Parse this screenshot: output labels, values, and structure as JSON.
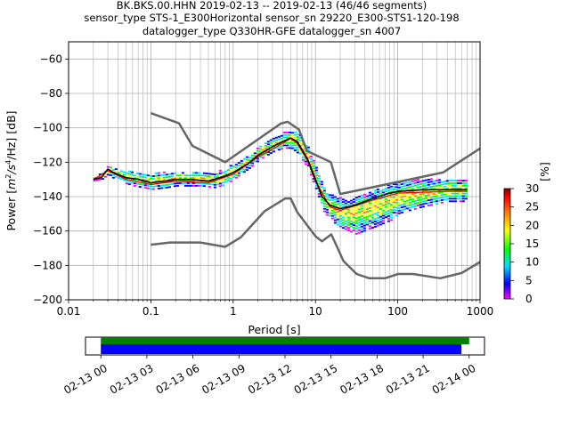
{
  "header": {
    "line1": "BK.BKS.00.HHN   2019-02-13 -- 2019-02-13  (46/46 segments)",
    "line2": "sensor_type STS-1_E300Horizontal sensor_sn 29220_E300-STS1-120-198",
    "line3": "datalogger_type Q330HR-GFE datalogger_sn 4007"
  },
  "chart_data": [
    {
      "type": "heatmap",
      "title": "BK.BKS.00.HHN   2019-02-13 -- 2019-02-13  (46/46 segments)",
      "xlabel": "Period [s]",
      "ylabel_prefix": "Power [",
      "ylabel_unit": "m",
      "ylabel_sup1": "2",
      "ylabel_mid": "/s",
      "ylabel_sup2": "4",
      "ylabel_suffix": "/Hz] [dB]",
      "x_scale": "log",
      "xlim": [
        0.01,
        1000
      ],
      "ylim": [
        -200,
        -50
      ],
      "x_ticks": [
        {
          "value": 0.01,
          "label": "0.01"
        },
        {
          "value": 0.1,
          "label": "0.1"
        },
        {
          "value": 1,
          "label": "1"
        },
        {
          "value": 10,
          "label": "10"
        },
        {
          "value": 100,
          "label": "100"
        },
        {
          "value": 1000,
          "label": "1000"
        }
      ],
      "y_ticks": [
        {
          "value": -60,
          "label": "−60"
        },
        {
          "value": -80,
          "label": "−80"
        },
        {
          "value": -100,
          "label": "−100"
        },
        {
          "value": -120,
          "label": "−120"
        },
        {
          "value": -140,
          "label": "−140"
        },
        {
          "value": -160,
          "label": "−160"
        },
        {
          "value": -180,
          "label": "−180"
        },
        {
          "value": -200,
          "label": "−200"
        }
      ],
      "grid": true,
      "colorbar": {
        "label": "[%]",
        "range": [
          0,
          30
        ],
        "ticks": [
          {
            "value": 0,
            "label": "0"
          },
          {
            "value": 5,
            "label": "5"
          },
          {
            "value": 10,
            "label": "10"
          },
          {
            "value": 15,
            "label": "15"
          },
          {
            "value": 20,
            "label": "20"
          },
          {
            "value": 25,
            "label": "25"
          },
          {
            "value": 30,
            "label": "30"
          }
        ],
        "colormap": [
          "#ff00ff",
          "#0000ff",
          "#00e0ff",
          "#00ff00",
          "#ffff00",
          "#ff8000",
          "#ff0000",
          "#800000"
        ]
      },
      "psd_band": [
        {
          "x": 0.02,
          "lo": -131,
          "hi": -129
        },
        {
          "x": 0.025,
          "lo": -130,
          "hi": -126
        },
        {
          "x": 0.03,
          "lo": -127,
          "hi": -122
        },
        {
          "x": 0.035,
          "lo": -130,
          "hi": -124
        },
        {
          "x": 0.045,
          "lo": -132,
          "hi": -125
        },
        {
          "x": 0.06,
          "lo": -134,
          "hi": -126
        },
        {
          "x": 0.08,
          "lo": -135,
          "hi": -126
        },
        {
          "x": 0.1,
          "lo": -136,
          "hi": -127
        },
        {
          "x": 0.15,
          "lo": -135,
          "hi": -126
        },
        {
          "x": 0.2,
          "lo": -134,
          "hi": -126
        },
        {
          "x": 0.3,
          "lo": -134,
          "hi": -126
        },
        {
          "x": 0.4,
          "lo": -134,
          "hi": -126
        },
        {
          "x": 0.6,
          "lo": -135,
          "hi": -126
        },
        {
          "x": 0.8,
          "lo": -133,
          "hi": -124
        },
        {
          "x": 1.0,
          "lo": -130,
          "hi": -121
        },
        {
          "x": 1.5,
          "lo": -124,
          "hi": -116
        },
        {
          "x": 2.0,
          "lo": -119,
          "hi": -111
        },
        {
          "x": 3.0,
          "lo": -114,
          "hi": -106
        },
        {
          "x": 4.0,
          "lo": -112,
          "hi": -103
        },
        {
          "x": 5.0,
          "lo": -112,
          "hi": -101
        },
        {
          "x": 6.0,
          "lo": -115,
          "hi": -103
        },
        {
          "x": 8.0,
          "lo": -124,
          "hi": -112
        },
        {
          "x": 10.0,
          "lo": -136,
          "hi": -124
        },
        {
          "x": 12.0,
          "lo": -148,
          "hi": -134
        },
        {
          "x": 15.0,
          "lo": -154,
          "hi": -139
        },
        {
          "x": 20.0,
          "lo": -158,
          "hi": -141
        },
        {
          "x": 30.0,
          "lo": -162,
          "hi": -140
        },
        {
          "x": 50.0,
          "lo": -158,
          "hi": -136
        },
        {
          "x": 80.0,
          "lo": -154,
          "hi": -132
        },
        {
          "x": 100.0,
          "lo": -150,
          "hi": -131
        },
        {
          "x": 200.0,
          "lo": -146,
          "hi": -130
        },
        {
          "x": 400.0,
          "lo": -143,
          "hi": -130
        },
        {
          "x": 700.0,
          "lo": -143,
          "hi": -130
        }
      ],
      "series": [
        {
          "name": "",
          "role": "mean",
          "color": "#000000",
          "points": [
            [
              0.02,
              -130
            ],
            [
              0.025,
              -129
            ],
            [
              0.03,
              -124
            ],
            [
              0.035,
              -126
            ],
            [
              0.05,
              -129
            ],
            [
              0.07,
              -130
            ],
            [
              0.1,
              -132
            ],
            [
              0.15,
              -131
            ],
            [
              0.2,
              -130
            ],
            [
              0.3,
              -130
            ],
            [
              0.5,
              -131
            ],
            [
              0.8,
              -128
            ],
            [
              1.0,
              -126
            ],
            [
              1.5,
              -121
            ],
            [
              2.0,
              -116
            ],
            [
              3.0,
              -111
            ],
            [
              4.0,
              -108
            ],
            [
              5.0,
              -106
            ],
            [
              6.0,
              -108
            ],
            [
              8.0,
              -118
            ],
            [
              10.0,
              -130
            ],
            [
              12.0,
              -140
            ],
            [
              15.0,
              -145
            ],
            [
              20.0,
              -147
            ],
            [
              30.0,
              -145
            ],
            [
              50.0,
              -141
            ],
            [
              80.0,
              -138
            ],
            [
              100.0,
              -137
            ],
            [
              200.0,
              -136
            ],
            [
              400.0,
              -136
            ],
            [
              700.0,
              -136
            ]
          ]
        },
        {
          "name": "",
          "role": "mode",
          "color": "#e00000",
          "points": [
            [
              0.02,
              -130
            ],
            [
              0.03,
              -125
            ],
            [
              0.05,
              -130
            ],
            [
              0.1,
              -133
            ],
            [
              0.2,
              -131
            ],
            [
              0.5,
              -132
            ],
            [
              1.0,
              -127
            ],
            [
              2.0,
              -117
            ],
            [
              4.0,
              -109
            ],
            [
              5.0,
              -106
            ],
            [
              6.0,
              -109
            ],
            [
              8.0,
              -119
            ],
            [
              10.0,
              -131
            ],
            [
              15.0,
              -146
            ],
            [
              20.0,
              -148
            ],
            [
              50.0,
              -142
            ],
            [
              100.0,
              -138
            ],
            [
              400.0,
              -137
            ],
            [
              700.0,
              -137
            ]
          ]
        },
        {
          "name": "",
          "role": "high-noise-model",
          "color": "#666666",
          "points": [
            [
              0.1,
              -91.5
            ],
            [
              0.22,
              -97.4
            ],
            [
              0.32,
              -110.5
            ],
            [
              0.8,
              -120
            ],
            [
              3.8,
              -97.5
            ],
            [
              4.6,
              -96.5
            ],
            [
              6.3,
              -101
            ],
            [
              7.9,
              -113.5
            ],
            [
              15.4,
              -120
            ],
            [
              20,
              -138.5
            ],
            [
              354.8,
              -126
            ],
            [
              1000,
              -112
            ]
          ]
        },
        {
          "name": "",
          "role": "low-noise-model",
          "color": "#666666",
          "points": [
            [
              0.1,
              -168
            ],
            [
              0.17,
              -166.7
            ],
            [
              0.4,
              -166.7
            ],
            [
              0.8,
              -169.2
            ],
            [
              1.24,
              -163.7
            ],
            [
              2.4,
              -148.6
            ],
            [
              4.3,
              -141.1
            ],
            [
              5.0,
              -141.1
            ],
            [
              6.0,
              -149
            ],
            [
              10.0,
              -163
            ],
            [
              12.0,
              -166
            ],
            [
              15.6,
              -162
            ],
            [
              21.9,
              -177.5
            ],
            [
              31.6,
              -185
            ],
            [
              45,
              -187.5
            ],
            [
              70,
              -187.5
            ],
            [
              101,
              -185
            ],
            [
              154,
              -185
            ],
            [
              328,
              -187.5
            ],
            [
              600,
              -184.4
            ],
            [
              1000,
              -178
            ]
          ]
        }
      ]
    },
    {
      "type": "timeline",
      "time_range": [
        "02-13 00",
        "02-14 00"
      ],
      "range_hours": [
        -1,
        25
      ],
      "tick_labels": [
        {
          "hour": 0,
          "label": "02-13 00"
        },
        {
          "hour": 3,
          "label": "02-13 03"
        },
        {
          "hour": 6,
          "label": "02-13 06"
        },
        {
          "hour": 9,
          "label": "02-13 09"
        },
        {
          "hour": 12,
          "label": "02-13 12"
        },
        {
          "hour": 15,
          "label": "02-13 15"
        },
        {
          "hour": 18,
          "label": "02-13 18"
        },
        {
          "hour": 21,
          "label": "02-13 21"
        },
        {
          "hour": 24,
          "label": "02-14 00"
        }
      ],
      "bars": [
        {
          "color": "#008000",
          "start_hour": 0,
          "end_hour": 24.0
        },
        {
          "color": "#0000ff",
          "start_hour": 0,
          "end_hour": 23.5
        }
      ]
    }
  ]
}
